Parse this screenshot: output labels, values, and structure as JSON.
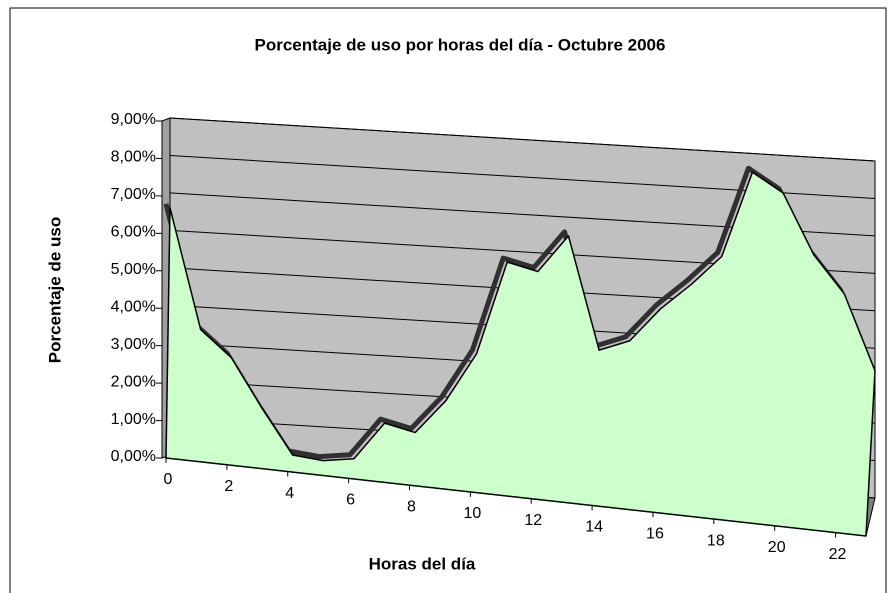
{
  "chart_data": {
    "type": "area3d",
    "title": "Porcentaje de uso por horas del día - Octubre 2006",
    "xlabel": "Horas del día",
    "ylabel": "Porcentaje de uso",
    "x": [
      0,
      1,
      2,
      3,
      4,
      5,
      6,
      7,
      8,
      9,
      10,
      11,
      12,
      13,
      14,
      15,
      16,
      17,
      18,
      19,
      20,
      21,
      22,
      23
    ],
    "values": [
      6.6,
      3.4,
      2.7,
      1.4,
      0.2,
      0.1,
      0.2,
      1.2,
      1.0,
      1.9,
      3.2,
      5.7,
      5.5,
      6.5,
      3.5,
      3.8,
      4.7,
      5.4,
      6.2,
      8.5,
      8.0,
      6.4,
      5.4,
      3.4
    ],
    "color": "#ccffcc",
    "wall_color": "#c0c0c0",
    "xlim": [
      0,
      23
    ],
    "xticks": [
      0,
      2,
      4,
      6,
      8,
      10,
      12,
      14,
      16,
      18,
      20,
      22
    ],
    "ylim": [
      0,
      9
    ],
    "yticks": [
      {
        "value": 0,
        "label": "0,00%"
      },
      {
        "value": 1,
        "label": "1,00%"
      },
      {
        "value": 2,
        "label": "2,00%"
      },
      {
        "value": 3,
        "label": "3,00%"
      },
      {
        "value": 4,
        "label": "4,00%"
      },
      {
        "value": 5,
        "label": "5,00%"
      },
      {
        "value": 6,
        "label": "6,00%"
      },
      {
        "value": 7,
        "label": "7,00%"
      },
      {
        "value": 8,
        "label": "8,00%"
      },
      {
        "value": 9,
        "label": "9,00%"
      }
    ],
    "grid": true
  }
}
